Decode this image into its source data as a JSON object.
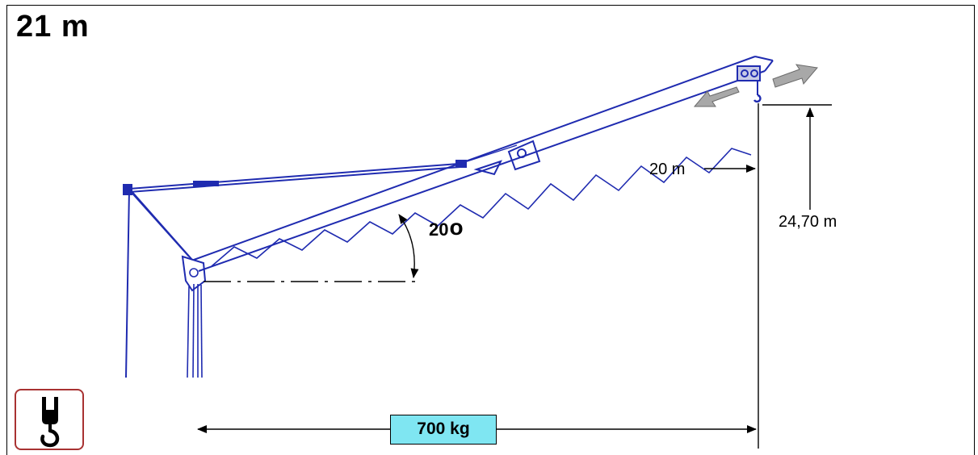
{
  "title": "21 m",
  "jib_angle": "20",
  "degree_symbol": "o",
  "hook_radius": "20 m",
  "hook_height": "24,70 m",
  "max_load": "700 kg",
  "icons": {
    "hook": "crane-hook-icon",
    "trolley_arrows": "bidirectional-arrow-icon"
  },
  "colors": {
    "crane": "#1f2bb0",
    "load_box": "#7fe6f2",
    "hook_badge_border": "#a83232",
    "arrows": "#9a9a9a"
  }
}
